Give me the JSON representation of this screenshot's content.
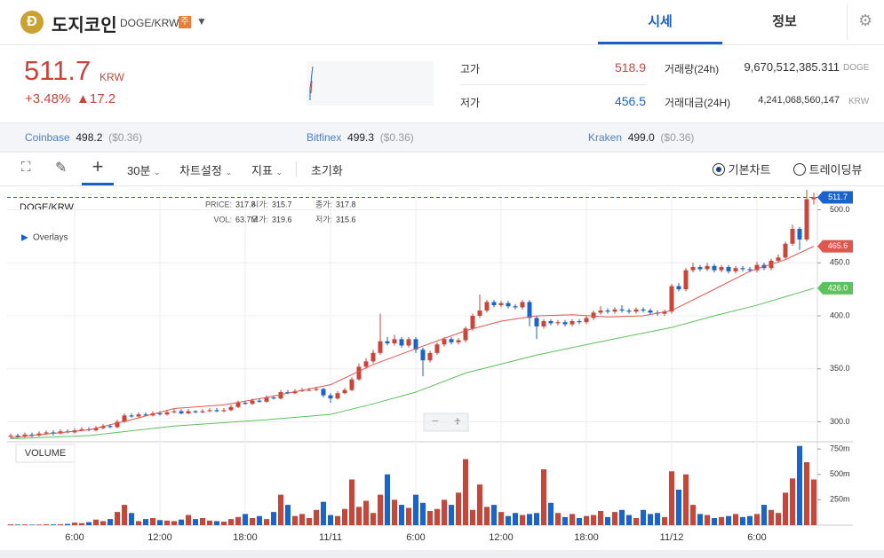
{
  "header": {
    "title": "도지코인",
    "pair": "DOGE/KRW",
    "badge": "주",
    "tabs": [
      "시세",
      "정보"
    ]
  },
  "price": {
    "value": "511.7",
    "unit": "KRW",
    "change_rate": "+3.48%",
    "change": "▲17.2"
  },
  "stats": [
    {
      "label": "고가",
      "value": "518.9"
    },
    {
      "label": "저가",
      "value": "456.5"
    },
    {
      "label": "거래량(24h)",
      "value": "9,670,512,385.311",
      "unit": "DOGE"
    },
    {
      "label": "거래대금(24H)",
      "value": "4,241,068,560,147",
      "unit": "KRW"
    }
  ],
  "exchanges": [
    {
      "name": "Coinbase",
      "price": "498.2",
      "usd": "($0.36)"
    },
    {
      "name": "Bitfinex",
      "price": "499.3",
      "usd": "($0.36)"
    },
    {
      "name": "Kraken",
      "price": "499.0",
      "usd": "($0.36)"
    }
  ],
  "toolbar": {
    "interval": "30분",
    "settings": "차트설정",
    "indicators": "지표",
    "reset": "초기화",
    "views": [
      "기본차트",
      "트레이딩뷰"
    ]
  },
  "chart_data": {
    "type": "candlestick",
    "symbol": "DOGE/KRW",
    "overlays": "Overlays",
    "volume_title": "VOLUME",
    "zoom": [
      "−",
      "+"
    ],
    "info": [
      {
        "label": "PRICE:",
        "value": "317.8"
      },
      {
        "label": "시가:",
        "value": "315.7"
      },
      {
        "label": "종가:",
        "value": "317.8"
      },
      {
        "label": "VOL:",
        "value": "63.7M"
      },
      {
        "label": "고가:",
        "value": "319.6"
      },
      {
        "label": "저가:",
        "value": "315.6"
      }
    ],
    "up_color": "#c9453a",
    "down_color": "#1a63cc",
    "price_line_color": "#1a63cc",
    "categories": [
      null,
      null,
      null,
      null,
      null,
      null,
      null,
      null,
      null,
      "6:00",
      null,
      null,
      null,
      null,
      null,
      null,
      null,
      null,
      null,
      null,
      null,
      "12:00",
      null,
      null,
      null,
      null,
      null,
      null,
      null,
      null,
      null,
      null,
      null,
      "18:00",
      null,
      null,
      null,
      null,
      null,
      null,
      null,
      null,
      null,
      null,
      null,
      "11/11",
      null,
      null,
      null,
      null,
      null,
      null,
      null,
      null,
      null,
      null,
      null,
      "6:00",
      null,
      null,
      null,
      null,
      null,
      null,
      null,
      null,
      null,
      null,
      null,
      "12:00",
      null,
      null,
      null,
      null,
      null,
      null,
      null,
      null,
      null,
      null,
      null,
      "18:00",
      null,
      null,
      null,
      null,
      null,
      null,
      null,
      null,
      null,
      null,
      null,
      "11/12",
      null,
      null,
      null,
      null,
      null,
      null,
      null,
      null,
      null,
      null,
      null,
      "6:00",
      null,
      null,
      null,
      null,
      null,
      null,
      null,
      null
    ],
    "open": [
      286,
      287,
      286,
      288,
      287,
      289,
      290,
      289,
      291,
      290,
      292,
      293,
      292,
      294,
      296,
      295,
      300,
      306,
      305,
      307,
      306,
      308,
      307,
      309,
      310,
      308,
      310,
      309,
      310,
      311,
      310,
      311,
      314,
      318,
      317,
      320,
      319,
      323,
      322,
      328,
      327,
      329,
      330,
      330,
      331,
      325,
      322,
      327,
      330,
      340,
      352,
      357,
      365,
      376,
      374,
      378,
      372,
      378,
      368,
      358,
      365,
      373,
      378,
      375,
      377,
      388,
      400,
      405,
      413,
      410,
      412,
      409,
      408,
      413,
      398,
      390,
      395,
      393,
      394,
      392,
      395,
      394,
      398,
      403,
      405,
      404,
      406,
      405,
      404,
      406,
      405,
      403,
      402,
      404,
      428,
      425,
      443,
      446,
      444,
      447,
      443,
      446,
      442,
      445,
      444,
      443,
      448,
      445,
      452,
      455,
      468,
      482,
      472,
      510
    ],
    "high": [
      289,
      289,
      290,
      290,
      291,
      292,
      292,
      293,
      293,
      294,
      295,
      295,
      296,
      298,
      298,
      302,
      308,
      308,
      309,
      309,
      310,
      310,
      311,
      312,
      312,
      312,
      311,
      312,
      313,
      313,
      313,
      316,
      320,
      320,
      322,
      322,
      325,
      325,
      330,
      330,
      331,
      332,
      332,
      333,
      332,
      327,
      329,
      332,
      342,
      355,
      360,
      368,
      402,
      380,
      382,
      380,
      380,
      380,
      370,
      367,
      375,
      380,
      380,
      379,
      390,
      402,
      420,
      415,
      415,
      414,
      414,
      411,
      415,
      415,
      400,
      397,
      397,
      396,
      396,
      397,
      397,
      400,
      405,
      409,
      407,
      408,
      410,
      407,
      408,
      408,
      407,
      405,
      406,
      430,
      431,
      445,
      450,
      448,
      450,
      449,
      448,
      448,
      447,
      447,
      446,
      451,
      450,
      454,
      458,
      470,
      486,
      484,
      518.9,
      516
    ],
    "low": [
      284,
      284,
      285,
      285,
      286,
      288,
      287,
      288,
      289,
      289,
      291,
      291,
      291,
      293,
      294,
      294,
      299,
      304,
      304,
      305,
      305,
      306,
      306,
      308,
      307,
      307,
      308,
      308,
      309,
      309,
      309,
      310,
      313,
      316,
      316,
      318,
      318,
      321,
      321,
      326,
      326,
      328,
      329,
      329,
      323,
      318,
      321,
      326,
      329,
      339,
      350,
      355,
      363,
      372,
      372,
      370,
      370,
      365,
      343,
      356,
      363,
      371,
      373,
      373,
      375,
      386,
      398,
      403,
      408,
      408,
      407,
      406,
      406,
      390,
      378,
      388,
      391,
      391,
      390,
      390,
      392,
      392,
      396,
      401,
      402,
      402,
      403,
      402,
      402,
      403,
      401,
      400,
      400,
      402,
      423,
      423,
      441,
      442,
      442,
      441,
      441,
      440,
      440,
      442,
      441,
      441,
      443,
      443,
      450,
      453,
      466,
      462,
      470,
      505
    ],
    "close": [
      287,
      286,
      288,
      287,
      289,
      290,
      289,
      291,
      290,
      292,
      293,
      292,
      294,
      296,
      295,
      300,
      306,
      305,
      307,
      306,
      308,
      307,
      309,
      310,
      308,
      310,
      309,
      310,
      311,
      310,
      311,
      314,
      318,
      317,
      320,
      319,
      323,
      322,
      328,
      327,
      329,
      330,
      330,
      331,
      325,
      322,
      327,
      330,
      340,
      352,
      357,
      365,
      376,
      374,
      378,
      372,
      378,
      368,
      358,
      365,
      373,
      378,
      375,
      377,
      388,
      400,
      405,
      413,
      410,
      412,
      409,
      408,
      413,
      398,
      390,
      395,
      393,
      394,
      392,
      395,
      394,
      398,
      403,
      405,
      404,
      406,
      405,
      404,
      406,
      405,
      403,
      402,
      404,
      428,
      425,
      443,
      446,
      444,
      447,
      443,
      446,
      442,
      445,
      444,
      443,
      448,
      445,
      452,
      455,
      468,
      482,
      472,
      510,
      511.7
    ],
    "volume": [
      8,
      6,
      7,
      5,
      6,
      8,
      7,
      9,
      12,
      25,
      20,
      30,
      55,
      40,
      60,
      130,
      200,
      120,
      40,
      60,
      70,
      50,
      45,
      40,
      55,
      100,
      60,
      70,
      45,
      40,
      35,
      60,
      80,
      110,
      70,
      90,
      60,
      130,
      300,
      200,
      90,
      110,
      70,
      150,
      230,
      100,
      90,
      160,
      450,
      180,
      240,
      120,
      300,
      500,
      250,
      200,
      170,
      300,
      220,
      140,
      160,
      250,
      200,
      320,
      650,
      150,
      400,
      180,
      200,
      130,
      90,
      120,
      100,
      110,
      120,
      550,
      220,
      120,
      80,
      110,
      70,
      90,
      100,
      140,
      80,
      130,
      150,
      100,
      70,
      150,
      110,
      120,
      80,
      530,
      350,
      500,
      200,
      110,
      100,
      70,
      80,
      90,
      110,
      80,
      90,
      110,
      200,
      150,
      120,
      320,
      460,
      780,
      620,
      450
    ],
    "moving_averages": [
      {
        "color": "#e0574e",
        "x": [
          0,
          11,
          17,
          23,
          30,
          36,
          45,
          51,
          57,
          64,
          69,
          74,
          79,
          84,
          89,
          93,
          99,
          104,
          109,
          113
        ],
        "values": [
          285,
          292.5,
          302,
          312.5,
          316,
          323,
          335,
          354,
          369,
          386,
          395,
          400,
          401,
          399,
          400,
          405,
          425,
          442,
          453,
          465.6
        ],
        "end_label": "465.6"
      },
      {
        "color": "#5cc25a",
        "x": [
          0,
          11,
          23,
          36,
          45,
          51,
          57,
          64,
          74,
          84,
          93,
          99,
          105,
          113
        ],
        "values": [
          284,
          287,
          296,
          302,
          307,
          317,
          328,
          346,
          363,
          377,
          389,
          400,
          410,
          426
        ],
        "end_label": "426.0"
      }
    ],
    "ylim": [
      282,
      518
    ],
    "yticks": [
      {
        "value": 300,
        "label": "300.0"
      },
      {
        "value": 350,
        "label": "350.0"
      },
      {
        "value": 400,
        "label": "400.0"
      },
      {
        "value": 450,
        "label": "450.0"
      },
      {
        "value": 500,
        "label": "500.0"
      }
    ],
    "volume_ylim": [
      0,
      786
    ],
    "volume_yticks": [
      {
        "value": 250,
        "label": "250m"
      },
      {
        "value": 500,
        "label": "500m"
      },
      {
        "value": 750,
        "label": "750m"
      }
    ],
    "grid": true
  }
}
